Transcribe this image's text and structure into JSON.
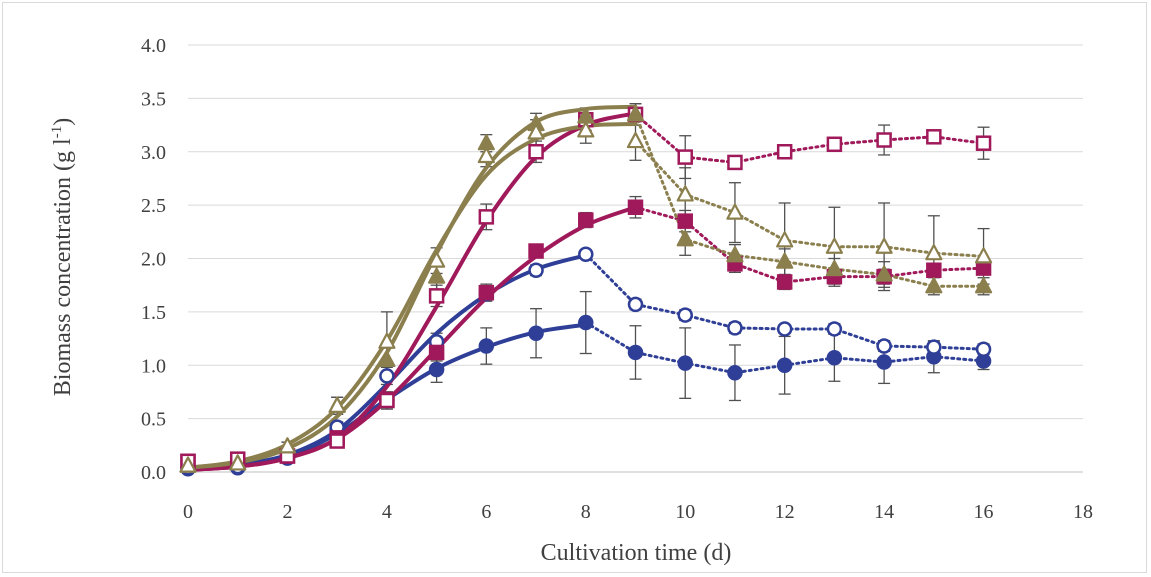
{
  "chart_data": {
    "type": "line",
    "xlabel": "Cultivation time (d)",
    "ylabel_main": "Biomass concentration (g l",
    "ylabel_sup": "-1",
    "ylabel_close": ")",
    "xlim": [
      0,
      18
    ],
    "ylim": [
      0,
      4.0
    ],
    "x_ticks": [
      0,
      2,
      4,
      6,
      8,
      10,
      12,
      14,
      16,
      18
    ],
    "x_tick_labels": [
      "0",
      "2",
      "4",
      "6",
      "8",
      "10",
      "12",
      "14",
      "16",
      "18"
    ],
    "y_ticks": [
      0,
      0.5,
      1.0,
      1.5,
      2.0,
      2.5,
      3.0,
      3.5,
      4.0
    ],
    "y_tick_labels": [
      "0.0",
      "0.5",
      "1.0",
      "1.5",
      "2.0",
      "2.5",
      "3.0",
      "3.5",
      "4.0"
    ],
    "grid": "horizontal",
    "legend": "none",
    "colors": {
      "blue": "#2f3f97",
      "magenta": "#a0195a",
      "olive": "#8b7f4e"
    },
    "series": [
      {
        "marker": "circle-filled",
        "color": "#2f3f97",
        "x": [
          0,
          1,
          2,
          3,
          4,
          5,
          6,
          7,
          8,
          9,
          10,
          11,
          12,
          13,
          14,
          15,
          16
        ],
        "y": [
          0.03,
          0.04,
          0.13,
          0.4,
          0.67,
          0.96,
          1.18,
          1.3,
          1.4,
          1.12,
          1.02,
          0.93,
          1.0,
          1.07,
          1.03,
          1.08,
          1.04
        ],
        "err": [
          0.02,
          0.02,
          0.03,
          0.05,
          0.08,
          0.12,
          0.17,
          0.23,
          0.29,
          0.25,
          0.33,
          0.26,
          0.27,
          0.22,
          0.2,
          0.15,
          0.08
        ],
        "fit": [
          [
            0,
            0.03
          ],
          [
            1,
            0.06
          ],
          [
            2,
            0.14
          ],
          [
            3,
            0.36
          ],
          [
            4,
            0.68
          ],
          [
            5,
            0.97
          ],
          [
            6,
            1.17
          ],
          [
            7,
            1.31
          ],
          [
            8,
            1.38
          ]
        ]
      },
      {
        "marker": "circle-open",
        "color": "#2f3f97",
        "x": [
          0,
          1,
          2,
          3,
          4,
          5,
          6,
          7,
          8,
          9,
          10,
          11,
          12,
          13,
          14,
          15,
          16
        ],
        "y": [
          0.04,
          0.05,
          0.15,
          0.42,
          0.9,
          1.22,
          1.67,
          1.89,
          2.04,
          1.57,
          1.47,
          1.35,
          1.34,
          1.34,
          1.18,
          1.17,
          1.15
        ],
        "err": [
          0.02,
          0.02,
          0.03,
          0.05,
          0.08,
          0.08,
          0.06,
          0.05,
          0.04,
          0.05,
          0.05,
          0.05,
          0.04,
          0.05,
          0.05,
          0.05,
          0.05
        ],
        "fit": [
          [
            0,
            0.03
          ],
          [
            1,
            0.07
          ],
          [
            2,
            0.16
          ],
          [
            3,
            0.39
          ],
          [
            4,
            0.82
          ],
          [
            5,
            1.3
          ],
          [
            6,
            1.66
          ],
          [
            7,
            1.9
          ],
          [
            8,
            2.03
          ]
        ]
      },
      {
        "marker": "square-filled",
        "color": "#a0195a",
        "x": [
          0,
          1,
          2,
          3,
          4,
          5,
          6,
          7,
          8,
          9,
          10,
          11,
          12,
          13,
          14,
          15,
          16
        ],
        "y": [
          0.1,
          0.12,
          0.15,
          0.32,
          0.68,
          1.12,
          1.68,
          2.07,
          2.36,
          2.48,
          2.35,
          1.95,
          1.78,
          1.83,
          1.83,
          1.89,
          1.91
        ],
        "err": [
          0.02,
          0.02,
          0.03,
          0.05,
          0.07,
          0.08,
          0.08,
          0.06,
          0.07,
          0.1,
          0.1,
          0.08,
          0.07,
          0.07,
          0.07,
          0.06,
          0.06
        ],
        "fit": [
          [
            0,
            0.02
          ],
          [
            1,
            0.05
          ],
          [
            2,
            0.13
          ],
          [
            3,
            0.31
          ],
          [
            4,
            0.67
          ],
          [
            5,
            1.15
          ],
          [
            6,
            1.63
          ],
          [
            7,
            2.02
          ],
          [
            8,
            2.31
          ],
          [
            9,
            2.48
          ]
        ]
      },
      {
        "marker": "square-open",
        "color": "#a0195a",
        "x": [
          0,
          1,
          2,
          3,
          4,
          5,
          6,
          7,
          8,
          9,
          10,
          11,
          12,
          13,
          14,
          15,
          16
        ],
        "y": [
          0.1,
          0.12,
          0.15,
          0.29,
          0.67,
          1.65,
          2.39,
          3.0,
          3.3,
          3.35,
          2.95,
          2.9,
          3.0,
          3.07,
          3.11,
          3.14,
          3.08
        ],
        "err": [
          0.02,
          0.02,
          0.03,
          0.05,
          0.08,
          0.1,
          0.12,
          0.1,
          0.1,
          0.1,
          0.2,
          0.06,
          0.05,
          0.05,
          0.14,
          0.05,
          0.15
        ],
        "fit": [
          [
            0,
            0.02
          ],
          [
            1,
            0.05
          ],
          [
            2,
            0.13
          ],
          [
            3,
            0.32
          ],
          [
            4,
            0.8
          ],
          [
            5,
            1.55
          ],
          [
            6,
            2.35
          ],
          [
            7,
            2.95
          ],
          [
            8,
            3.25
          ],
          [
            9,
            3.36
          ]
        ]
      },
      {
        "marker": "triangle-filled",
        "color": "#8b7f4e",
        "x": [
          0,
          1,
          2,
          3,
          4,
          5,
          6,
          7,
          8,
          9,
          10,
          11,
          12,
          13,
          14,
          15,
          16
        ],
        "y": [
          0.06,
          0.08,
          0.24,
          0.62,
          1.05,
          1.83,
          3.08,
          3.26,
          3.33,
          3.35,
          2.18,
          2.03,
          1.97,
          1.9,
          1.85,
          1.74,
          1.74
        ],
        "err": [
          0.02,
          0.02,
          0.04,
          0.08,
          0.12,
          0.12,
          0.08,
          0.1,
          0.08,
          0.1,
          0.15,
          0.1,
          0.12,
          0.1,
          0.12,
          0.08,
          0.08
        ],
        "fit": [
          [
            0,
            0.04
          ],
          [
            1,
            0.09
          ],
          [
            2,
            0.22
          ],
          [
            3,
            0.52
          ],
          [
            4,
            1.12
          ],
          [
            5,
            2.05
          ],
          [
            6,
            2.85
          ],
          [
            7,
            3.28
          ],
          [
            8,
            3.4
          ],
          [
            9,
            3.42
          ]
        ]
      },
      {
        "marker": "triangle-open",
        "color": "#8b7f4e",
        "x": [
          0,
          1,
          2,
          3,
          4,
          5,
          6,
          7,
          8,
          9,
          10,
          11,
          12,
          13,
          14,
          15,
          16
        ],
        "y": [
          0.06,
          0.08,
          0.24,
          0.62,
          1.22,
          1.98,
          2.96,
          3.18,
          3.2,
          3.1,
          2.6,
          2.43,
          2.17,
          2.11,
          2.11,
          2.05,
          2.02
        ],
        "err": [
          0.02,
          0.02,
          0.04,
          0.08,
          0.28,
          0.12,
          0.1,
          0.12,
          0.12,
          0.18,
          0.25,
          0.28,
          0.35,
          0.37,
          0.41,
          0.35,
          0.26
        ],
        "fit": [
          [
            0,
            0.04
          ],
          [
            1,
            0.1
          ],
          [
            2,
            0.26
          ],
          [
            3,
            0.6
          ],
          [
            4,
            1.23
          ],
          [
            5,
            2.08
          ],
          [
            6,
            2.78
          ],
          [
            7,
            3.12
          ],
          [
            8,
            3.24
          ],
          [
            9,
            3.26
          ]
        ]
      }
    ]
  }
}
